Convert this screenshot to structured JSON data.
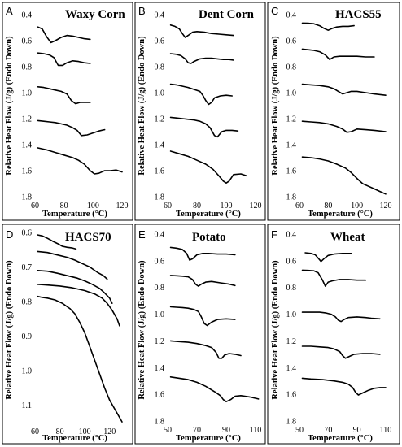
{
  "chart_data": [
    {
      "panel": "A",
      "type": "line",
      "title": "Waxy Corn",
      "xlabel": "Temperature (°C)",
      "ylabel": "Relative Heat Flow (J/g) (Endo Down)",
      "xlim": [
        60,
        120
      ],
      "ylim": [
        0.4,
        1.8
      ],
      "y_inverted": true,
      "xticks": [
        "60",
        "80",
        "100",
        "120"
      ],
      "yticks": [
        "0.4",
        "0.6",
        "0.8",
        "1.0",
        "1.2",
        "1.4",
        "1.6",
        "1.8"
      ],
      "series": [
        {
          "x": [
            62,
            65,
            68,
            71,
            74,
            78,
            82,
            86,
            90,
            94,
            98
          ],
          "y": [
            0.495,
            0.51,
            0.57,
            0.615,
            0.6,
            0.575,
            0.56,
            0.565,
            0.575,
            0.585,
            0.59
          ]
        },
        {
          "x": [
            62,
            66,
            70,
            73,
            76,
            79,
            82,
            86,
            90,
            94,
            98
          ],
          "y": [
            0.695,
            0.7,
            0.71,
            0.73,
            0.79,
            0.79,
            0.77,
            0.755,
            0.76,
            0.77,
            0.775
          ]
        },
        {
          "x": [
            62,
            66,
            70,
            74,
            78,
            82,
            85,
            88,
            91,
            94,
            98
          ],
          "y": [
            0.955,
            0.96,
            0.97,
            0.98,
            0.99,
            1.01,
            1.06,
            1.085,
            1.075,
            1.075,
            1.075
          ]
        },
        {
          "x": [
            62,
            66,
            70,
            74,
            78,
            82,
            86,
            89,
            92,
            96,
            100,
            104,
            108
          ],
          "y": [
            1.215,
            1.22,
            1.225,
            1.23,
            1.24,
            1.25,
            1.27,
            1.29,
            1.33,
            1.325,
            1.31,
            1.295,
            1.285
          ]
        },
        {
          "x": [
            62,
            68,
            74,
            80,
            86,
            90,
            94,
            98,
            101,
            104,
            108,
            112,
            116,
            120
          ],
          "y": [
            1.425,
            1.44,
            1.46,
            1.48,
            1.5,
            1.52,
            1.55,
            1.6,
            1.625,
            1.62,
            1.6,
            1.6,
            1.595,
            1.61
          ]
        }
      ]
    },
    {
      "panel": "B",
      "type": "line",
      "title": "Dent Corn",
      "xlabel": "Temperature (°C)",
      "ylabel": "Relative Heat Flow (J/g) (Endo Down)",
      "xlim": [
        60,
        120
      ],
      "ylim": [
        0.4,
        1.8
      ],
      "y_inverted": true,
      "xticks": [
        "60",
        "80",
        "100",
        "120"
      ],
      "yticks": [
        "0.4",
        "0.6",
        "0.8",
        "1.0",
        "1.2",
        "1.4",
        "1.6",
        "1.8"
      ],
      "series": [
        {
          "x": [
            62,
            65,
            68,
            70,
            72,
            74,
            77,
            80,
            85,
            90,
            95,
            100,
            105
          ],
          "y": [
            0.48,
            0.49,
            0.51,
            0.545,
            0.575,
            0.56,
            0.535,
            0.53,
            0.535,
            0.545,
            0.55,
            0.555,
            0.56
          ]
        },
        {
          "x": [
            62,
            66,
            69,
            72,
            74,
            76,
            78,
            82,
            86,
            90,
            94,
            98,
            102,
            105
          ],
          "y": [
            0.7,
            0.705,
            0.715,
            0.74,
            0.77,
            0.775,
            0.76,
            0.74,
            0.735,
            0.735,
            0.74,
            0.745,
            0.745,
            0.75
          ]
        },
        {
          "x": [
            62,
            66,
            70,
            74,
            78,
            82,
            84,
            86,
            88,
            90,
            92,
            96,
            100,
            104
          ],
          "y": [
            0.935,
            0.94,
            0.95,
            0.96,
            0.975,
            0.99,
            1.02,
            1.06,
            1.09,
            1.075,
            1.04,
            1.025,
            1.02,
            1.025
          ]
        },
        {
          "x": [
            62,
            66,
            70,
            74,
            78,
            82,
            86,
            89,
            92,
            94,
            97,
            100,
            104,
            108
          ],
          "y": [
            1.19,
            1.195,
            1.2,
            1.205,
            1.21,
            1.22,
            1.24,
            1.27,
            1.33,
            1.34,
            1.3,
            1.29,
            1.29,
            1.295
          ]
        },
        {
          "x": [
            62,
            68,
            74,
            80,
            86,
            91,
            95,
            98,
            100,
            102,
            105,
            110,
            114
          ],
          "y": [
            1.45,
            1.47,
            1.49,
            1.52,
            1.55,
            1.59,
            1.64,
            1.68,
            1.695,
            1.68,
            1.63,
            1.625,
            1.64
          ]
        }
      ]
    },
    {
      "panel": "C",
      "type": "line",
      "title": "HACS55",
      "xlabel": "Temperature (°C)",
      "ylabel": "Relative Heat Flow (J/g) (Endo Down)",
      "xlim": [
        60,
        120
      ],
      "ylim": [
        0.4,
        1.8
      ],
      "y_inverted": true,
      "xticks": [
        "60",
        "80",
        "100",
        "120"
      ],
      "yticks": [
        "0.4",
        "0.6",
        "0.8",
        "1.0",
        "1.2",
        "1.4",
        "1.6",
        "1.8"
      ],
      "series": [
        {
          "x": [
            62,
            66,
            70,
            74,
            77,
            80,
            83,
            86,
            90,
            94,
            98
          ],
          "y": [
            0.465,
            0.466,
            0.47,
            0.485,
            0.505,
            0.52,
            0.505,
            0.495,
            0.49,
            0.49,
            0.485
          ]
        },
        {
          "x": [
            62,
            66,
            70,
            74,
            78,
            81,
            84,
            88,
            94,
            100,
            106,
            112
          ],
          "y": [
            0.665,
            0.67,
            0.675,
            0.685,
            0.71,
            0.745,
            0.725,
            0.72,
            0.72,
            0.72,
            0.725,
            0.725
          ]
        },
        {
          "x": [
            62,
            68,
            74,
            80,
            84,
            87,
            90,
            93,
            96,
            100,
            106,
            112,
            120
          ],
          "y": [
            0.935,
            0.94,
            0.945,
            0.955,
            0.97,
            0.99,
            1.01,
            1.0,
            0.99,
            0.99,
            1.0,
            1.01,
            1.02
          ]
        },
        {
          "x": [
            62,
            68,
            74,
            80,
            86,
            90,
            93,
            96,
            100,
            106,
            112,
            120
          ],
          "y": [
            1.22,
            1.225,
            1.23,
            1.24,
            1.26,
            1.28,
            1.305,
            1.3,
            1.28,
            1.285,
            1.29,
            1.3
          ]
        },
        {
          "x": [
            62,
            68,
            74,
            80,
            86,
            92,
            96,
            100,
            104,
            108,
            112,
            116,
            120
          ],
          "y": [
            1.495,
            1.5,
            1.51,
            1.525,
            1.55,
            1.58,
            1.615,
            1.66,
            1.7,
            1.72,
            1.74,
            1.76,
            1.78
          ]
        }
      ]
    },
    {
      "panel": "D",
      "type": "line",
      "title": "HACS70",
      "xlabel": "Temperature (°C)",
      "ylabel": "Relative Heat Flow (J/g) (Endo Down)",
      "xlim": [
        60,
        130
      ],
      "ylim": [
        0.6,
        1.15
      ],
      "y_inverted": true,
      "xticks": [
        "60",
        "80",
        "100",
        "120"
      ],
      "yticks": [
        "0.6",
        "0.7",
        "0.8",
        "0.9",
        "1.0",
        "1.1"
      ],
      "series": [
        {
          "x": [
            62,
            66,
            70,
            74,
            78,
            82,
            86,
            90,
            93
          ],
          "y": [
            0.607,
            0.61,
            0.617,
            0.625,
            0.632,
            0.64,
            0.643,
            0.645,
            0.648
          ]
        },
        {
          "x": [
            62,
            70,
            78,
            86,
            92,
            98,
            104,
            110,
            115,
            118
          ],
          "y": [
            0.655,
            0.658,
            0.665,
            0.672,
            0.68,
            0.69,
            0.7,
            0.715,
            0.725,
            0.735
          ]
        },
        {
          "x": [
            62,
            70,
            78,
            86,
            94,
            100,
            106,
            112,
            116,
            120,
            122
          ],
          "y": [
            0.71,
            0.712,
            0.718,
            0.725,
            0.732,
            0.74,
            0.75,
            0.762,
            0.775,
            0.79,
            0.805
          ]
        },
        {
          "x": [
            62,
            70,
            80,
            90,
            100,
            108,
            114,
            118,
            122,
            126,
            128
          ],
          "y": [
            0.75,
            0.752,
            0.755,
            0.76,
            0.768,
            0.778,
            0.79,
            0.805,
            0.825,
            0.85,
            0.87
          ]
        },
        {
          "x": [
            62,
            66,
            70,
            76,
            82,
            88,
            92,
            96,
            100,
            104,
            108,
            112,
            116,
            120,
            124,
            128,
            130
          ],
          "y": [
            0.785,
            0.788,
            0.79,
            0.795,
            0.805,
            0.82,
            0.835,
            0.86,
            0.89,
            0.93,
            0.97,
            1.01,
            1.05,
            1.085,
            1.11,
            1.135,
            1.148
          ]
        }
      ]
    },
    {
      "panel": "E",
      "type": "line",
      "title": "Potato",
      "xlabel": "Temperature (°C)",
      "ylabel": "Relative Heat Flow (J/g) (Endo Down)",
      "xlim": [
        50,
        110
      ],
      "ylim": [
        0.4,
        1.8
      ],
      "y_inverted": true,
      "xticks": [
        "50",
        "70",
        "90",
        "110"
      ],
      "yticks": [
        "0.4",
        "0.6",
        "0.8",
        "1.0",
        "1.2",
        "1.4",
        "1.6",
        "1.8"
      ],
      "series": [
        {
          "x": [
            52,
            56,
            60,
            63,
            65,
            67,
            70,
            74,
            78,
            84,
            90,
            96
          ],
          "y": [
            0.5,
            0.505,
            0.515,
            0.545,
            0.595,
            0.585,
            0.555,
            0.545,
            0.545,
            0.55,
            0.55,
            0.555
          ]
        },
        {
          "x": [
            52,
            56,
            60,
            64,
            67,
            69,
            71,
            73,
            76,
            80,
            86,
            92,
            96
          ],
          "y": [
            0.71,
            0.712,
            0.715,
            0.72,
            0.74,
            0.775,
            0.79,
            0.775,
            0.76,
            0.755,
            0.765,
            0.775,
            0.785
          ]
        },
        {
          "x": [
            52,
            56,
            60,
            64,
            68,
            71,
            73,
            75,
            77,
            80,
            84,
            90,
            96
          ],
          "y": [
            0.945,
            0.948,
            0.95,
            0.955,
            0.965,
            0.98,
            1.02,
            1.07,
            1.085,
            1.06,
            1.04,
            1.035,
            1.04
          ]
        },
        {
          "x": [
            52,
            58,
            64,
            70,
            76,
            80,
            83,
            85,
            87,
            89,
            92,
            96,
            100
          ],
          "y": [
            1.2,
            1.205,
            1.21,
            1.22,
            1.235,
            1.25,
            1.285,
            1.33,
            1.33,
            1.305,
            1.295,
            1.3,
            1.31
          ]
        },
        {
          "x": [
            52,
            58,
            64,
            70,
            76,
            82,
            86,
            88,
            90,
            93,
            96,
            100,
            106,
            112
          ],
          "y": [
            1.47,
            1.48,
            1.49,
            1.51,
            1.54,
            1.58,
            1.61,
            1.64,
            1.655,
            1.64,
            1.615,
            1.61,
            1.62,
            1.635
          ]
        }
      ]
    },
    {
      "panel": "F",
      "type": "line",
      "title": "Wheat",
      "xlabel": "Temperature (°C)",
      "ylabel": "Relative Heat Flow (J/g) (Endo Down)",
      "xlim": [
        50,
        110
      ],
      "ylim": [
        0.4,
        1.8
      ],
      "y_inverted": true,
      "xticks": [
        "50",
        "70",
        "90",
        "110"
      ],
      "yticks": [
        "0.4",
        "0.6",
        "0.8",
        "1.0",
        "1.2",
        "1.4",
        "1.6",
        "1.8"
      ],
      "series": [
        {
          "x": [
            54,
            58,
            61,
            63,
            65,
            67,
            70,
            74,
            80,
            86
          ],
          "y": [
            0.54,
            0.545,
            0.555,
            0.58,
            0.605,
            0.585,
            0.56,
            0.55,
            0.545,
            0.545
          ]
        },
        {
          "x": [
            52,
            56,
            60,
            63,
            66,
            68,
            70,
            73,
            78,
            84,
            90,
            96
          ],
          "y": [
            0.67,
            0.672,
            0.675,
            0.69,
            0.745,
            0.79,
            0.76,
            0.75,
            0.74,
            0.74,
            0.745,
            0.745
          ]
        },
        {
          "x": [
            52,
            58,
            64,
            68,
            72,
            75,
            77,
            79,
            81,
            84,
            90,
            96,
            100,
            106
          ],
          "y": [
            0.985,
            0.985,
            0.985,
            0.99,
            1.0,
            1.02,
            1.045,
            1.055,
            1.04,
            1.025,
            1.02,
            1.025,
            1.03,
            1.035
          ]
        },
        {
          "x": [
            52,
            58,
            64,
            70,
            74,
            78,
            80,
            82,
            84,
            88,
            94,
            100,
            106
          ],
          "y": [
            1.24,
            1.24,
            1.245,
            1.25,
            1.26,
            1.28,
            1.31,
            1.33,
            1.32,
            1.3,
            1.295,
            1.295,
            1.3
          ]
        },
        {
          "x": [
            52,
            58,
            66,
            74,
            80,
            84,
            87,
            89,
            91,
            94,
            98,
            102,
            106,
            110
          ],
          "y": [
            1.48,
            1.485,
            1.49,
            1.5,
            1.51,
            1.525,
            1.55,
            1.585,
            1.605,
            1.59,
            1.57,
            1.555,
            1.55,
            1.55
          ]
        }
      ]
    }
  ]
}
